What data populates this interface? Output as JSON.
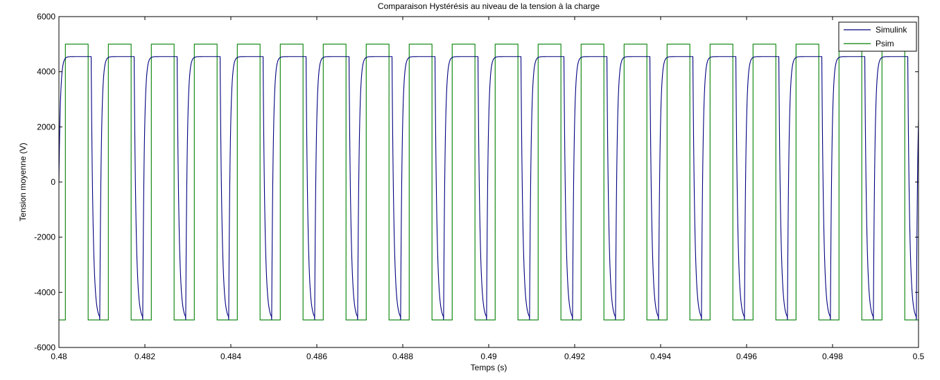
{
  "chart_data": {
    "type": "line",
    "title": "Comparaison Hystérésis au niveau de la tension à la charge",
    "xlabel": "Temps (s)",
    "ylabel": "Tension moyenne (V)",
    "xlim": [
      0.48,
      0.5
    ],
    "ylim": [
      -6000,
      6000
    ],
    "x_ticks": [
      0.48,
      0.482,
      0.484,
      0.486,
      0.488,
      0.49,
      0.492,
      0.494,
      0.496,
      0.498,
      0.5
    ],
    "x_tick_labels": [
      "0.48",
      "0.482",
      "0.484",
      "0.486",
      "0.488",
      "0.49",
      "0.492",
      "0.494",
      "0.496",
      "0.498",
      "0.5"
    ],
    "y_ticks": [
      -6000,
      -4000,
      -2000,
      0,
      2000,
      4000,
      6000
    ],
    "y_tick_labels": [
      "-6000",
      "-4000",
      "-2000",
      "0",
      "2000",
      "4000",
      "6000"
    ],
    "grid": false,
    "legend_position": "top-right",
    "series": [
      {
        "name": "Simulink",
        "color": "#00007f",
        "waveform": "smoothed square wave",
        "high": 4550,
        "low": -5000,
        "period": 0.001,
        "fall_times": [
          0.48075,
          0.48175,
          0.48275,
          0.48375,
          0.48475,
          0.48575,
          0.48675,
          0.48775,
          0.48875,
          0.48975,
          0.49075,
          0.49175,
          0.49275,
          0.49375,
          0.49475,
          0.49575,
          0.49675,
          0.49775,
          0.49875,
          0.49975
        ],
        "rise_times": [
          0.48,
          0.48095,
          0.48195,
          0.48295,
          0.48395,
          0.48495,
          0.48595,
          0.48695,
          0.48795,
          0.48895,
          0.48995,
          0.49095,
          0.49195,
          0.49295,
          0.49395,
          0.49495,
          0.49595,
          0.49695,
          0.49795,
          0.49895,
          0.49995
        ]
      },
      {
        "name": "Psim",
        "color": "#007f00",
        "waveform": "square wave",
        "high": 5000,
        "low": -5000,
        "period": 0.001,
        "fall_times": [
          0.48068,
          0.48168,
          0.48268,
          0.48368,
          0.48468,
          0.48568,
          0.48668,
          0.48768,
          0.48868,
          0.48968,
          0.49068,
          0.49168,
          0.49268,
          0.49368,
          0.49468,
          0.49568,
          0.49668,
          0.49768,
          0.49868,
          0.49968
        ],
        "rise_times": [
          0.48015,
          0.48115,
          0.48215,
          0.48315,
          0.48415,
          0.48515,
          0.48615,
          0.48715,
          0.48815,
          0.48915,
          0.49015,
          0.49115,
          0.49215,
          0.49315,
          0.49415,
          0.49515,
          0.49615,
          0.49715,
          0.49815,
          0.49915
        ]
      }
    ]
  }
}
